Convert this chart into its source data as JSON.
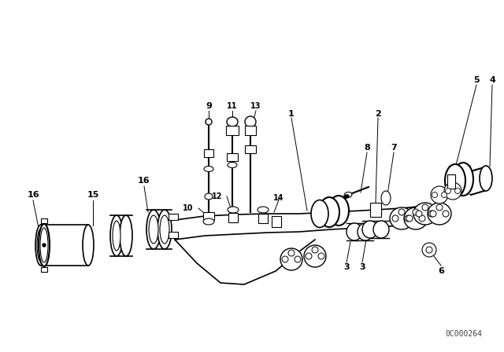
{
  "background_color": "#ffffff",
  "diagram_color": "#000000",
  "watermark": "0C000264",
  "fig_w": 6.4,
  "fig_h": 4.48,
  "dpi": 100
}
